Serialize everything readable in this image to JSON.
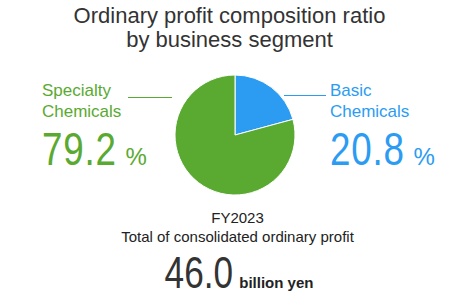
{
  "chart_data": {
    "type": "pie",
    "title": "Ordinary profit composition ratio by business segment",
    "categories": [
      "Basic Chemicals",
      "Specialty Chemicals"
    ],
    "values": [
      20.8,
      79.2
    ],
    "value_labels": [
      "20.8%",
      "79.2%"
    ],
    "colors": [
      "#2b9cf2",
      "#5aaa32"
    ],
    "data_labels": true,
    "legend": false,
    "annotations": {
      "fiscal_year": "FY2023",
      "total_label": "Total of consolidated ordinary profit",
      "total_value": {
        "value": 46.0,
        "label": "46.0"
      },
      "total_unit": "billion yen"
    }
  }
}
